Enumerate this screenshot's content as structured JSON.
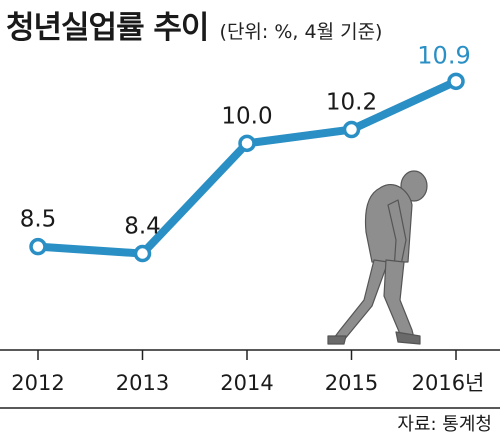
{
  "chart_data": {
    "type": "line",
    "title": "청년실업률 추이",
    "subtitle": "(단위: %, 4월 기준)",
    "tick_labels": [
      "2012",
      "2013",
      "2014",
      "2015",
      "2016년"
    ],
    "x": [
      2012,
      2013,
      2014,
      2015,
      2016
    ],
    "series": [
      {
        "values": [
          8.5,
          8.4,
          10.0,
          10.2,
          10.9
        ]
      }
    ],
    "value_labels": [
      "8.5",
      "8.4",
      "10.0",
      "10.2",
      "10.9"
    ],
    "ylim": [
      7.0,
      11.5
    ],
    "grid": false,
    "line_color": "#2a8fc4",
    "highlight_color": "#2a8fc4",
    "source": "자료: 통계청"
  }
}
